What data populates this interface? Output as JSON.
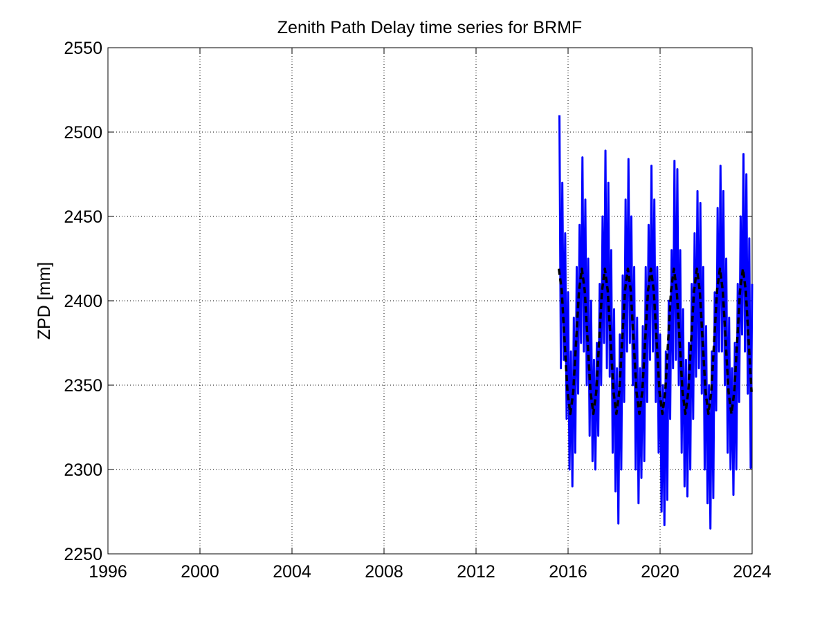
{
  "chart_data": {
    "type": "line",
    "title": "Zenith Path Delay time series for BRMF",
    "y_label": "ZPD [mm]",
    "xlim": [
      1996,
      2024
    ],
    "xticks": [
      1996,
      2000,
      2004,
      2008,
      2012,
      2016,
      2020,
      2024
    ],
    "ylim": [
      2250,
      2550
    ],
    "yticks": [
      2250,
      2300,
      2350,
      2400,
      2450,
      2500,
      2550
    ],
    "grid": true,
    "series": [
      {
        "color": "#0000ff",
        "dashed": false,
        "x": [
          2015.625,
          2015.6875,
          2015.75,
          2015.8125,
          2015.875,
          2015.9375,
          2016,
          2016.0625,
          2016.125,
          2016.1875,
          2016.25,
          2016.3125,
          2016.375,
          2016.4375,
          2016.5,
          2016.5625,
          2016.625,
          2016.6875,
          2016.75,
          2016.8125,
          2016.875,
          2016.9375,
          2017,
          2017.0625,
          2017.125,
          2017.1875,
          2017.25,
          2017.3125,
          2017.375,
          2017.4375,
          2017.5,
          2017.5625,
          2017.625,
          2017.6875,
          2017.75,
          2017.8125,
          2017.875,
          2017.9375,
          2018,
          2018.0625,
          2018.125,
          2018.1875,
          2018.25,
          2018.3125,
          2018.375,
          2018.4375,
          2018.5,
          2018.5625,
          2018.625,
          2018.6875,
          2018.75,
          2018.8125,
          2018.875,
          2018.9375,
          2019,
          2019.0625,
          2019.125,
          2019.1875,
          2019.25,
          2019.3125,
          2019.375,
          2019.4375,
          2019.5,
          2019.5625,
          2019.625,
          2019.6875,
          2019.75,
          2019.8125,
          2019.875,
          2019.9375,
          2020,
          2020.0625,
          2020.125,
          2020.1875,
          2020.25,
          2020.3125,
          2020.375,
          2020.4375,
          2020.5,
          2020.5625,
          2020.625,
          2020.6875,
          2020.75,
          2020.8125,
          2020.875,
          2020.9375,
          2021,
          2021.0625,
          2021.125,
          2021.1875,
          2021.25,
          2021.3125,
          2021.375,
          2021.4375,
          2021.5,
          2021.5625,
          2021.625,
          2021.6875,
          2021.75,
          2021.8125,
          2021.875,
          2021.9375,
          2022,
          2022.0625,
          2022.125,
          2022.1875,
          2022.25,
          2022.3125,
          2022.375,
          2022.4375,
          2022.5,
          2022.5625,
          2022.625,
          2022.6875,
          2022.75,
          2022.8125,
          2022.875,
          2022.9375,
          2023,
          2023.0625,
          2023.125,
          2023.1875,
          2023.25,
          2023.3125,
          2023.375,
          2023.4375,
          2023.5,
          2023.5625,
          2023.625,
          2023.6875,
          2023.75,
          2023.8125,
          2023.875,
          2023.9375,
          2024
        ],
        "values": [
          2510,
          2360,
          2470,
          2365,
          2440,
          2330,
          2405,
          2300,
          2370,
          2290,
          2390,
          2310,
          2420,
          2345,
          2445,
          2375,
          2485,
          2370,
          2460,
          2350,
          2425,
          2320,
          2400,
          2305,
          2365,
          2300,
          2375,
          2320,
          2410,
          2350,
          2450,
          2375,
          2489,
          2360,
          2470,
          2355,
          2430,
          2310,
          2395,
          2287,
          2360,
          2268,
          2380,
          2300,
          2415,
          2340,
          2460,
          2370,
          2484,
          2375,
          2450,
          2350,
          2420,
          2300,
          2390,
          2280,
          2360,
          2295,
          2385,
          2305,
          2420,
          2340,
          2445,
          2365,
          2480,
          2370,
          2460,
          2340,
          2420,
          2310,
          2380,
          2275,
          2350,
          2267,
          2370,
          2282,
          2400,
          2330,
          2430,
          2360,
          2483,
          2365,
          2478,
          2350,
          2430,
          2310,
          2395,
          2290,
          2365,
          2284,
          2375,
          2300,
          2410,
          2330,
          2440,
          2355,
          2465,
          2360,
          2458,
          2345,
          2420,
          2300,
          2385,
          2280,
          2350,
          2265,
          2370,
          2283,
          2405,
          2335,
          2455,
          2370,
          2480,
          2370,
          2465,
          2350,
          2425,
          2310,
          2390,
          2300,
          2360,
          2285,
          2375,
          2300,
          2410,
          2340,
          2450,
          2380,
          2487,
          2370,
          2475,
          2345,
          2437,
          2301,
          2410
        ]
      },
      {
        "color": "#000000",
        "dashed": true,
        "x": [
          2015.6,
          2015.725,
          2015.85,
          2015.975,
          2016.1,
          2016.225,
          2016.35,
          2016.475,
          2016.6,
          2016.725,
          2016.85,
          2016.975,
          2017.1,
          2017.225,
          2017.35,
          2017.475,
          2017.6,
          2017.725,
          2017.85,
          2017.975,
          2018.1,
          2018.225,
          2018.35,
          2018.475,
          2018.6,
          2018.725,
          2018.85,
          2018.975,
          2019.1,
          2019.225,
          2019.35,
          2019.475,
          2019.6,
          2019.725,
          2019.85,
          2019.975,
          2020.1,
          2020.225,
          2020.35,
          2020.475,
          2020.6,
          2020.725,
          2020.85,
          2020.975,
          2021.1,
          2021.225,
          2021.35,
          2021.475,
          2021.6,
          2021.725,
          2021.85,
          2021.975,
          2022.1,
          2022.225,
          2022.35,
          2022.475,
          2022.6,
          2022.725,
          2022.85,
          2022.975,
          2023.1,
          2023.225,
          2023.35,
          2023.475,
          2023.6,
          2023.725,
          2023.85,
          2023.975
        ],
        "values": [
          2419,
          2406,
          2376,
          2346,
          2333,
          2346,
          2376,
          2406,
          2419,
          2406,
          2376,
          2346,
          2333,
          2346,
          2376,
          2406,
          2419,
          2406,
          2376,
          2346,
          2333,
          2346,
          2376,
          2406,
          2419,
          2406,
          2376,
          2346,
          2333,
          2346,
          2376,
          2406,
          2419,
          2406,
          2376,
          2346,
          2333,
          2346,
          2376,
          2406,
          2419,
          2406,
          2376,
          2346,
          2333,
          2346,
          2376,
          2406,
          2419,
          2406,
          2376,
          2346,
          2333,
          2346,
          2376,
          2406,
          2419,
          2406,
          2376,
          2346,
          2333,
          2346,
          2376,
          2406,
          2419,
          2406,
          2376,
          2346
        ]
      }
    ]
  }
}
